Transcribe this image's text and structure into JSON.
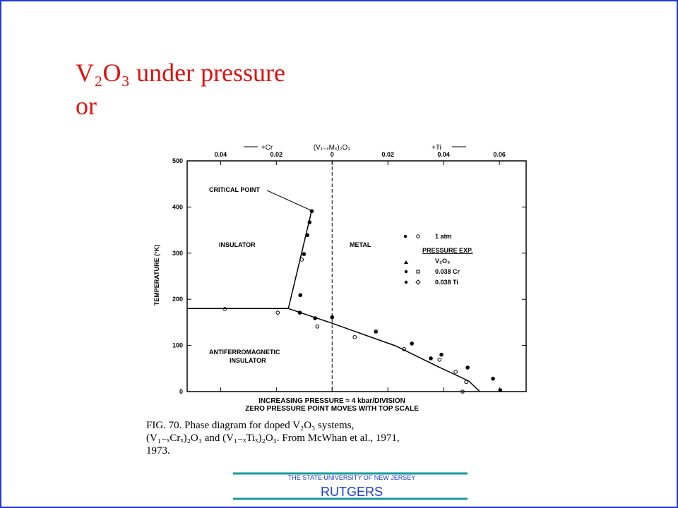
{
  "title_lines": [
    "V₂O₃ under pressure",
    "or"
  ],
  "chart_data": {
    "type": "scatter",
    "y_label": "TEMPERATURE (°K)",
    "x_label": "INCREASING PRESSURE ≈ 4 kbar/DIVISION",
    "x_label_2": "ZERO PRESSURE POINT MOVES WITH TOP SCALE",
    "top_label": "(V₁₋ₓMₓ)₂O₃",
    "left_arrow_label": "+Cr",
    "right_arrow_label": "+Ti",
    "annotations": [
      "CRITICAL POINT",
      "INSULATOR",
      "METAL",
      "ANTIFERROMAGNETIC",
      "INSULATOR"
    ],
    "legend_texts": [
      "1 atm",
      "PRESSURE EXP.",
      "V₂O₃",
      "0.038 Cr",
      "0.038 Ti"
    ],
    "xlim": [
      -0.052,
      0.0696
    ],
    "ylim": [
      0,
      500
    ],
    "xticks": [
      {
        "value": -0.04,
        "label": "0.04"
      },
      {
        "value": -0.02,
        "label": "0.02"
      },
      0,
      0.02,
      0.04,
      0.06
    ],
    "yticks": [
      0,
      100,
      200,
      300,
      400,
      500
    ],
    "series": [
      {
        "kind": "line",
        "color": "#000000",
        "x": [
          -0.052,
          -0.0157,
          -0.0073
        ],
        "values": [
          180,
          180,
          393
        ]
      },
      {
        "kind": "line",
        "color": "#000000",
        "x": [
          -0.0157,
          0,
          0.0228,
          0.038,
          0.049,
          0.053
        ],
        "values": [
          180,
          148,
          99,
          54,
          23,
          0
        ]
      },
      {
        "kind": "points",
        "marker": "filled",
        "color": "#000000",
        "x": [
          -0.0073,
          -0.0081,
          -0.0089,
          -0.0101,
          -0.0114,
          -0.0116,
          -0.0061,
          0,
          0.0157,
          0.0286,
          0.0354,
          0.0392,
          0.0486,
          0.0577,
          0.0603
        ],
        "values": [
          391,
          367,
          339,
          298,
          209,
          171,
          159,
          161,
          130,
          104,
          72,
          80,
          52,
          28,
          3
        ]
      },
      {
        "kind": "points",
        "marker": "open",
        "color": "#000000",
        "x": [
          -0.0109,
          -0.0195,
          -0.0053,
          0.0081,
          0.0258,
          0.0385,
          0.0443,
          0.0481,
          0.0468,
          -0.0385
        ],
        "values": [
          286,
          171,
          141,
          118,
          92,
          69,
          43,
          21,
          0,
          179
        ]
      }
    ]
  },
  "caption_lines": [
    "FIG. 70.  Phase diagram for doped V₂O₃ systems,",
    "(V₁₋ₓCrₓ)₂O₃ and (V₁₋ₓTiₓ)₂O₃. From McWhan et al., 1971,",
    "1973."
  ],
  "footer": {
    "university": "THE STATE UNIVERSITY OF NEW JERSEY",
    "name": "RUTGERS"
  }
}
